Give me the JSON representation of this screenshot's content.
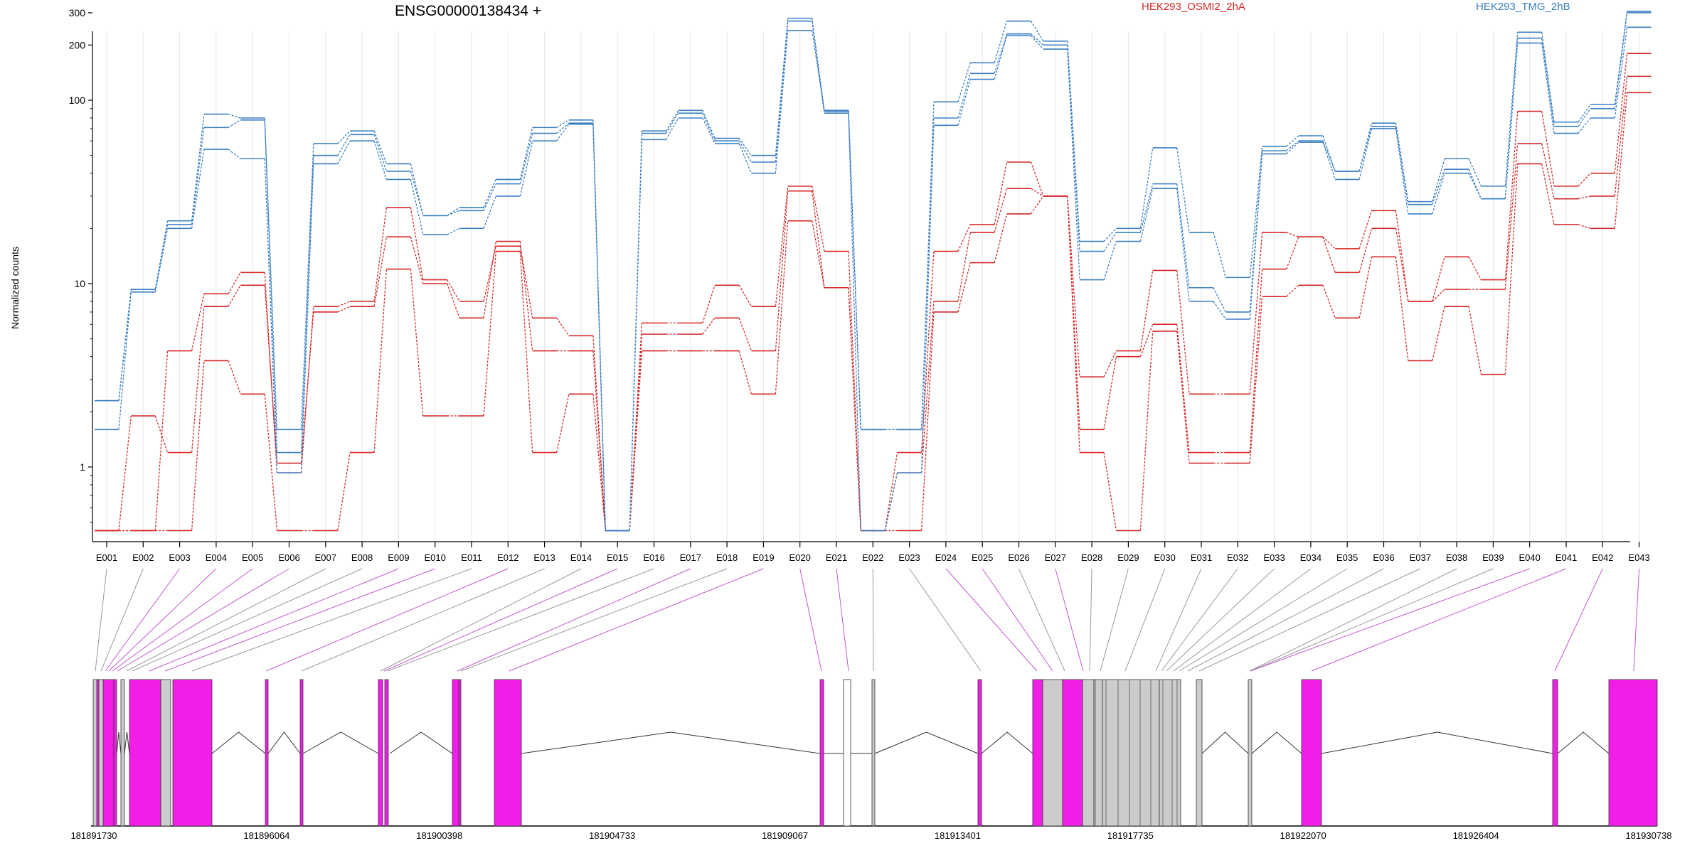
{
  "chart_data": {
    "type": "line",
    "title": "ENSG00000138434 +",
    "ylabel": "Normalized counts",
    "y_scale": "log",
    "ylim": [
      0.45,
      350
    ],
    "y_ticks": [
      1,
      10,
      100,
      200,
      300
    ],
    "y_tick_labels": [
      "1",
      "10",
      "100",
      "200",
      "300"
    ],
    "legend_placement": "top",
    "exon_bins": [
      "E001",
      "E002",
      "E003",
      "E004",
      "E005",
      "E006",
      "E007",
      "E008",
      "E009",
      "E010",
      "E011",
      "E012",
      "E013",
      "E014",
      "E015",
      "E016",
      "E017",
      "E018",
      "E019",
      "E020",
      "E021",
      "E022",
      "E023",
      "E024",
      "E025",
      "E026",
      "E027",
      "E028",
      "E029",
      "E030",
      "E031",
      "E032",
      "E033",
      "E034",
      "E035",
      "E036",
      "E037",
      "E038",
      "E039",
      "E040",
      "E041",
      "E042",
      "E043"
    ],
    "groups": [
      {
        "name": "HEK293_OSMI2_2hA",
        "color": "#d62728"
      },
      {
        "name": "HEK293_TMG_2hB",
        "color": "#3b7fc4"
      }
    ],
    "series": [
      {
        "group": 0,
        "values": [
          0.45,
          0.45,
          0.45,
          3.8,
          2.5,
          0.45,
          0.45,
          1.2,
          12,
          1.9,
          1.9,
          15,
          1.2,
          2.5,
          0.45,
          4.3,
          4.3,
          4.3,
          2.5,
          22,
          9.5,
          0.45,
          0.45,
          7,
          13,
          24,
          30,
          1.2,
          0.45,
          5.5,
          1.05,
          1.05,
          8.5,
          9.8,
          6.5,
          14,
          3.8,
          7.5,
          3.2,
          45,
          21,
          20,
          110
        ]
      },
      {
        "group": 0,
        "values": [
          0.45,
          1.9,
          1.2,
          7.5,
          9.8,
          1.05,
          7,
          7.5,
          18,
          10,
          6.5,
          17,
          4.3,
          4.3,
          0.45,
          5.3,
          5.3,
          6.5,
          4.3,
          32,
          9.5,
          0.45,
          0.93,
          8,
          19,
          33,
          30,
          1.6,
          4,
          6,
          1.2,
          1.2,
          12,
          18,
          11.5,
          20,
          8,
          9.3,
          9.3,
          58,
          29,
          30,
          135
        ]
      },
      {
        "group": 0,
        "values": [
          0.45,
          0.45,
          4.3,
          8.8,
          11.5,
          0.93,
          7.5,
          8,
          26,
          10.5,
          8,
          16,
          6.5,
          5.2,
          0.45,
          6.1,
          6.1,
          9.8,
          7.5,
          34,
          15,
          0.45,
          1.2,
          15,
          21,
          46,
          30,
          3.1,
          4.3,
          11.8,
          2.5,
          2.5,
          19,
          18,
          15.5,
          25,
          8,
          14,
          10.5,
          87,
          34,
          40,
          180
        ]
      },
      {
        "group": 1,
        "values": [
          1.6,
          9,
          20,
          54,
          48,
          0.93,
          45,
          60,
          37,
          18.5,
          20,
          30,
          60,
          74,
          0.45,
          61,
          80,
          58,
          40,
          240,
          87,
          0.45,
          0.93,
          73,
          130,
          225,
          190,
          10.5,
          17,
          33,
          8,
          6.4,
          51,
          59,
          37,
          70,
          24,
          40,
          29,
          205,
          66,
          80,
          250
        ]
      },
      {
        "group": 1,
        "values": [
          2.3,
          9.3,
          21,
          71,
          78,
          1.2,
          50,
          65,
          41,
          23.5,
          25,
          35,
          66,
          75,
          0.45,
          66,
          85,
          60,
          46,
          270,
          85,
          1.6,
          1.6,
          80,
          140,
          230,
          200,
          15,
          19,
          35,
          9.5,
          7,
          53,
          60,
          41,
          72,
          27,
          42,
          29,
          218,
          72,
          90,
          300
        ]
      },
      {
        "group": 1,
        "values": [
          2.3,
          9.3,
          22,
          84,
          80,
          1.6,
          58,
          68,
          45,
          23.5,
          26,
          37,
          71,
          78,
          0.45,
          68,
          88,
          62,
          50,
          280,
          88,
          1.6,
          1.6,
          98,
          160,
          270,
          210,
          17,
          20,
          55,
          19,
          10.8,
          56,
          64,
          41,
          75,
          28,
          48,
          34,
          235,
          76,
          95,
          305
        ]
      }
    ],
    "genomic_axis": {
      "tick_labels": [
        "181891730",
        "181896064",
        "181900398",
        "181904733",
        "181909067",
        "181913401",
        "181917735",
        "181922070",
        "181926404",
        "181930738"
      ]
    }
  }
}
